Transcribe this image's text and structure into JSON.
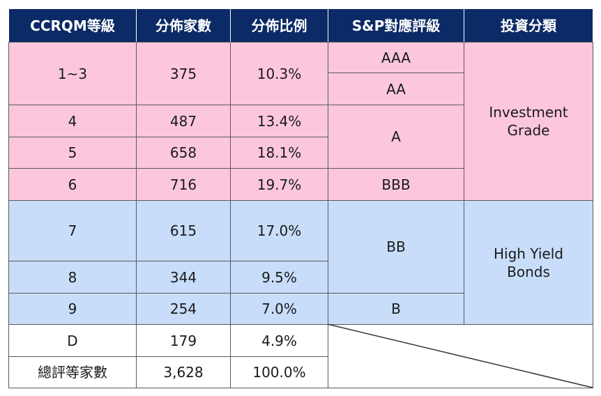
{
  "header": [
    "CCRQM等級",
    "分佈家數",
    "分佈比例",
    "S&P對應評級",
    "投資分類"
  ],
  "rows": [
    {
      "grade": "1~3",
      "count": "375",
      "share": "10.3%"
    },
    {
      "grade": "4",
      "count": "487",
      "share": "13.4%"
    },
    {
      "grade": "5",
      "count": "658",
      "share": "18.1%"
    },
    {
      "grade": "6",
      "count": "716",
      "share": "19.7%"
    },
    {
      "grade": "7",
      "count": "615",
      "share": "17.0%"
    },
    {
      "grade": "8",
      "count": "344",
      "share": "9.5%"
    },
    {
      "grade": "9",
      "count": "254",
      "share": "7.0%"
    },
    {
      "grade": "D",
      "count": "179",
      "share": "4.9%"
    }
  ],
  "total": {
    "label": "總評等家數",
    "count": "3,628",
    "share": "100.0%"
  },
  "sp_ratings": [
    "AAA",
    "AA",
    "A",
    "BBB",
    "BB",
    "B"
  ],
  "classes": [
    "Investment Grade",
    "High Yield Bonds"
  ]
}
